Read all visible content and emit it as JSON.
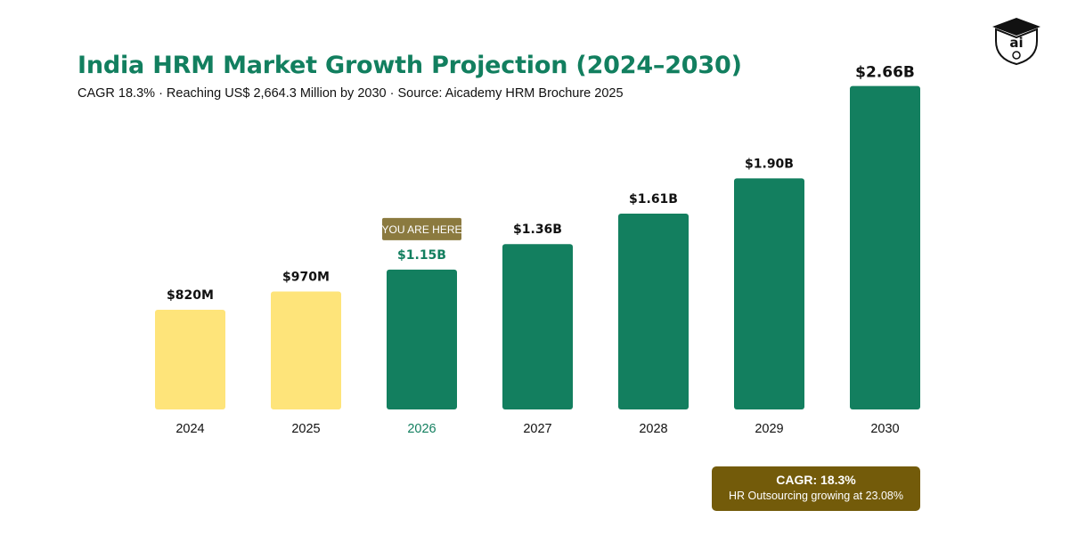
{
  "header": {
    "title": "India HRM Market Growth Projection (2024–2030)",
    "subtitle": "CAGR 18.3% · Reaching US$ 2,664.3 Million by 2030 · Source: Aicademy HRM Brochure 2025"
  },
  "logo": {
    "icon": "academy-crest-icon",
    "text": "ai"
  },
  "chart_data": {
    "type": "bar",
    "categories": [
      "2024",
      "2025",
      "2026",
      "2027",
      "2028",
      "2029",
      "2030"
    ],
    "values": [
      820,
      970,
      1150,
      1360,
      1610,
      1900,
      2660
    ],
    "data_labels": [
      "$820M",
      "$970M",
      "$1.15B",
      "$1.36B",
      "$1.61B",
      "$1.90B",
      "$2.66B"
    ],
    "ylim": [
      0,
      2664.3
    ],
    "grid": false,
    "highlight": {
      "category": "2026",
      "label": "YOU ARE HERE"
    },
    "colors": {
      "past": "#fee47a",
      "projected": "#137f5f",
      "highlight_badge": "#8b7a3f",
      "highlight_text": "#137f5f"
    }
  },
  "summary": {
    "line1": "CAGR: 18.3%",
    "line2": "HR Outsourcing growing at 23.08%"
  }
}
